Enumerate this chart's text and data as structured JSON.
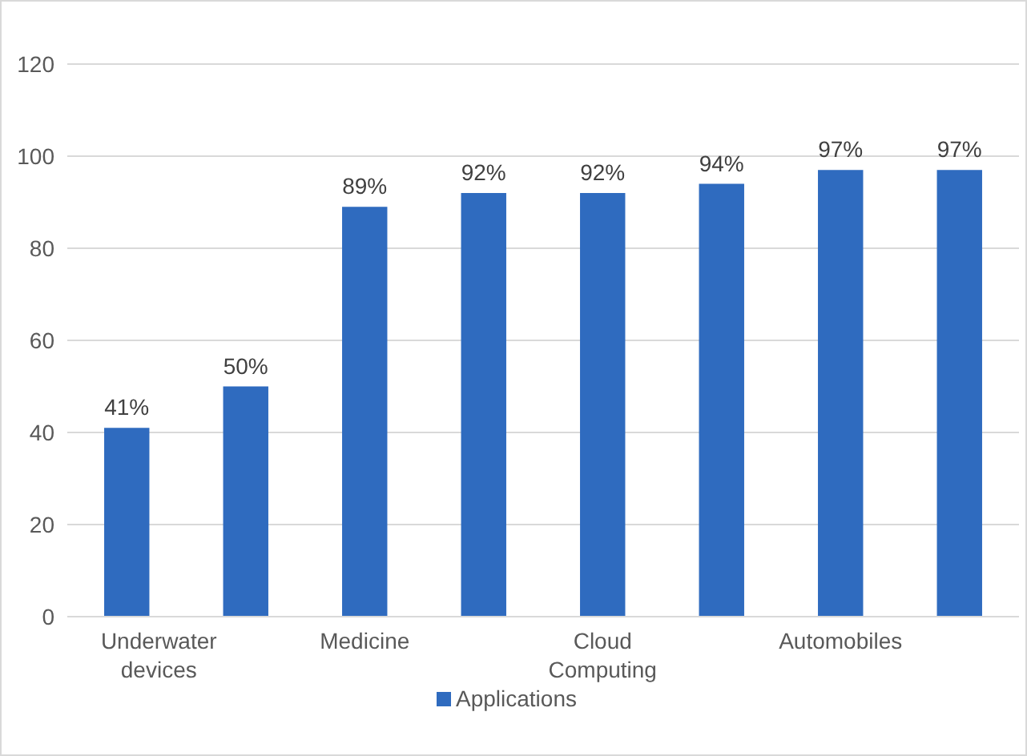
{
  "chart_data": {
    "type": "bar",
    "categories": [
      "Underwater devices",
      null,
      "Medicine",
      null,
      "Cloud Computing",
      null,
      "Automobiles",
      null
    ],
    "series": [
      {
        "name": "Applications",
        "color": "#2f6bbf",
        "values": [
          41,
          50,
          89,
          92,
          92,
          94,
          97,
          97
        ],
        "value_labels": [
          "41%",
          "50%",
          "89%",
          "92%",
          "92%",
          "94%",
          "97%",
          "97%"
        ]
      }
    ],
    "ylim": [
      0,
      120
    ],
    "yticks": [
      0,
      20,
      40,
      60,
      80,
      100,
      120
    ],
    "grid": "y",
    "legend": "bottom"
  }
}
